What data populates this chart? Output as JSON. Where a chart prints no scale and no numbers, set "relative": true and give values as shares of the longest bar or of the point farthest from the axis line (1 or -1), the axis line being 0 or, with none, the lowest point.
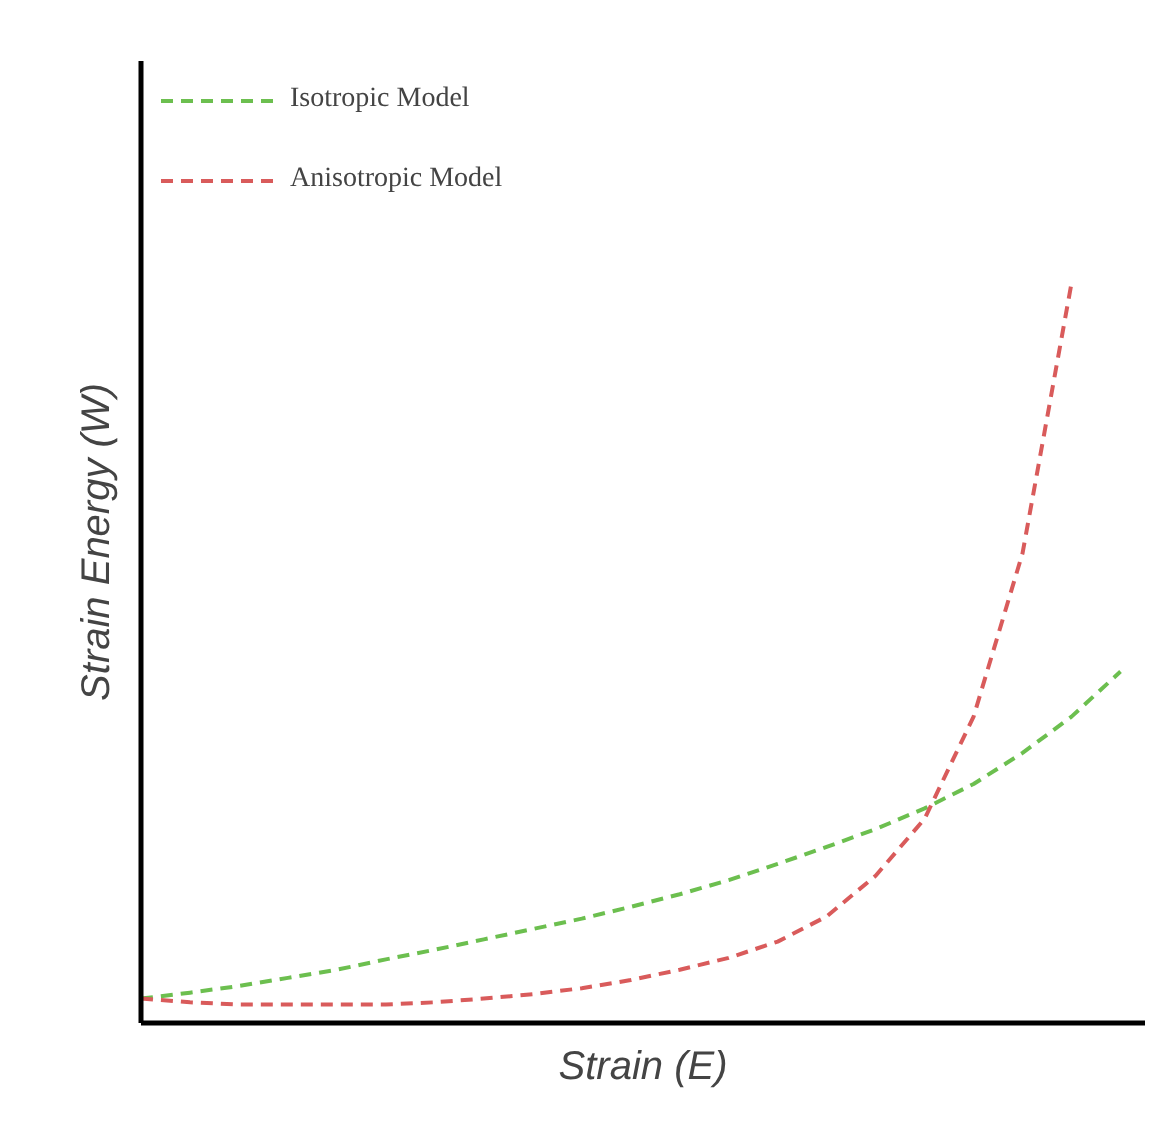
{
  "chart_data": {
    "type": "line",
    "relative": true,
    "xlabel": "Strain (E)",
    "ylabel": "Strain Energy (W)",
    "categories": [
      null,
      null,
      null,
      null,
      null,
      null,
      null,
      null,
      null,
      null,
      null,
      null,
      null,
      null,
      null,
      null,
      null,
      null,
      null,
      null,
      null
    ],
    "series": [
      {
        "name": "Isotropic Model",
        "color": "#6cbf4f",
        "values": [
          0.033,
          0.041,
          0.05,
          0.061,
          0.072,
          0.086,
          0.099,
          0.113,
          0.127,
          0.141,
          0.157,
          0.174,
          0.193,
          0.215,
          0.238,
          0.262,
          0.29,
          0.323,
          0.365,
          0.414,
          0.475
        ]
      },
      {
        "name": "Anisotropic Model",
        "color": "#d95b5b",
        "values": [
          0.033,
          0.028,
          0.025,
          0.025,
          0.025,
          0.025,
          0.028,
          0.033,
          0.039,
          0.047,
          0.058,
          0.072,
          0.088,
          0.11,
          0.144,
          0.199,
          0.276,
          0.414,
          0.635,
          1.0,
          null
        ]
      }
    ],
    "legend": "top left",
    "grid": false,
    "line_style": "dashed",
    "marker": "none"
  }
}
